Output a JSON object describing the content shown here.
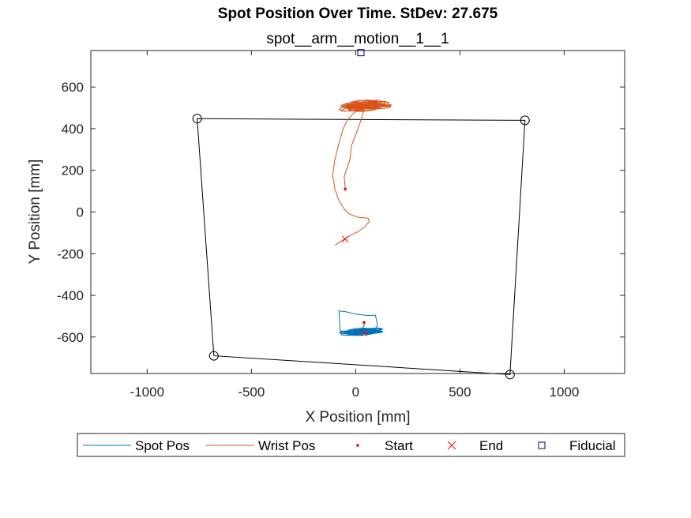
{
  "chart_data": {
    "type": "line",
    "title": "Spot Position Over Time. StDev: 27.675",
    "subtitle": "spot__arm__motion__1__1",
    "xlabel": "X Position [mm]",
    "ylabel": "Y Position [mm]",
    "xlim": [
      -1270,
      1290
    ],
    "ylim": [
      -775,
      775
    ],
    "xticks": [
      -1000,
      -500,
      0,
      500,
      1000
    ],
    "yticks": [
      -600,
      -400,
      -200,
      0,
      200,
      400,
      600
    ],
    "grid": false,
    "legend_position": "bottom",
    "legend": [
      {
        "label": "Spot Pos",
        "kind": "line",
        "color": "#0072bd"
      },
      {
        "label": "Wrist Pos",
        "kind": "line",
        "color": "#d95319"
      },
      {
        "label": "Start",
        "kind": "dot",
        "color": "#ff0000"
      },
      {
        "label": "End",
        "kind": "x",
        "color": "#ff0000"
      },
      {
        "label": "Fiducial",
        "kind": "square",
        "color": "#000080"
      }
    ],
    "boundary": {
      "color": "#000000",
      "corners": [
        [
          -760,
          448
        ],
        [
          812,
          440
        ],
        [
          740,
          -780
        ],
        [
          -680,
          -690
        ]
      ]
    },
    "series": [
      {
        "name": "Spot Pos",
        "color": "#0072bd",
        "points": [
          [
            45,
            -525
          ],
          [
            40,
            -545
          ],
          [
            25,
            -570
          ],
          [
            -20,
            -582
          ],
          [
            -70,
            -585
          ],
          [
            -75,
            -560
          ],
          [
            -80,
            -475
          ],
          [
            -50,
            -478
          ],
          [
            0,
            -490
          ],
          [
            60,
            -497
          ],
          [
            95,
            -495
          ],
          [
            100,
            -520
          ],
          [
            105,
            -545
          ],
          [
            90,
            -565
          ],
          [
            50,
            -575
          ],
          [
            30,
            -582
          ],
          [
            5,
            -588
          ]
        ],
        "scribble": {
          "cx": 30,
          "cy": -575,
          "rx": 110,
          "ry": 18
        }
      },
      {
        "name": "Wrist Pos",
        "color": "#d95319",
        "points": [
          [
            -50,
            110
          ],
          [
            -52,
            140
          ],
          [
            -55,
            170
          ],
          [
            -45,
            200
          ],
          [
            -28,
            250
          ],
          [
            -20,
            320
          ],
          [
            0,
            370
          ],
          [
            25,
            440
          ],
          [
            40,
            490
          ],
          [
            30,
            500
          ],
          [
            -10,
            475
          ],
          [
            -40,
            440
          ],
          [
            -60,
            400
          ],
          [
            -80,
            330
          ],
          [
            -100,
            250
          ],
          [
            -110,
            180
          ],
          [
            -100,
            110
          ],
          [
            -80,
            55
          ],
          [
            -55,
            15
          ],
          [
            -30,
            -10
          ],
          [
            10,
            -25
          ],
          [
            60,
            -30
          ],
          [
            65,
            -45
          ],
          [
            45,
            -70
          ],
          [
            10,
            -95
          ],
          [
            -30,
            -115
          ],
          [
            -70,
            -140
          ],
          [
            -100,
            -160
          ]
        ],
        "scribble": {
          "cx": 45,
          "cy": 510,
          "rx": 130,
          "ry": 28
        }
      }
    ],
    "start_points": [
      [
        -50,
        110
      ],
      [
        40,
        -530
      ]
    ],
    "end_points": [
      [
        -50,
        -130
      ],
      [
        40,
        -580
      ]
    ],
    "boundary_markers": [
      [
        -760,
        448
      ],
      [
        812,
        440
      ],
      [
        740,
        -780
      ],
      [
        -680,
        -690
      ]
    ],
    "fiducial": [
      25,
      765
    ]
  }
}
